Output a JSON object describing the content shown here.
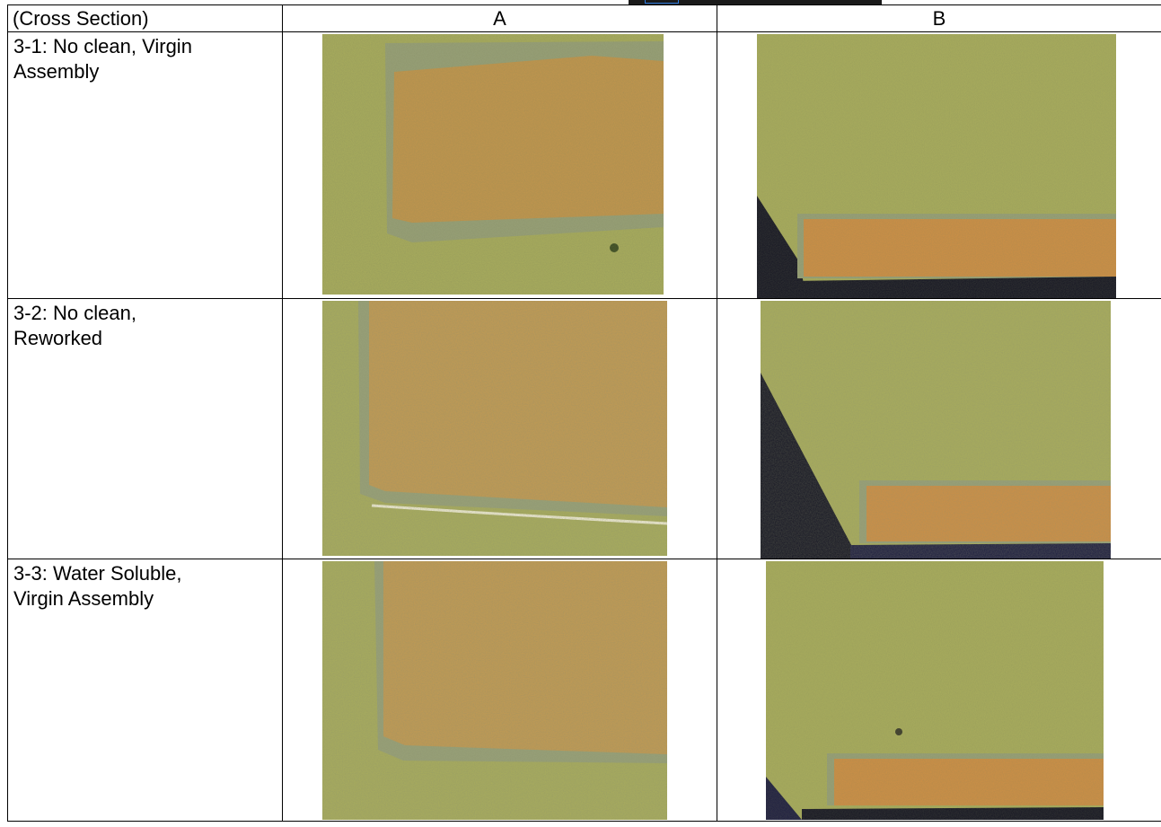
{
  "table": {
    "header": {
      "label": "(Cross Section)",
      "col_a": "A",
      "col_b": "B"
    },
    "rows": [
      {
        "label_line1": "3-1: No clean, Virgin",
        "label_line2": "Assembly",
        "image_a": "micrograph-3-1-a",
        "image_b": "micrograph-3-1-b"
      },
      {
        "label_line1": "3-2: No clean,",
        "label_line2": "Reworked",
        "image_a": "micrograph-3-2-a",
        "image_b": "micrograph-3-2-b"
      },
      {
        "label_line1": "3-3: Water Soluble,",
        "label_line2": "Virgin Assembly",
        "image_a": "micrograph-3-3-a",
        "image_b": "micrograph-3-3-b"
      }
    ]
  },
  "colors": {
    "resin": "#a9ad5c",
    "copper": "#c4964c",
    "interface": "#98a178",
    "void": "#141423",
    "blue_edge": "#2f7de1"
  }
}
